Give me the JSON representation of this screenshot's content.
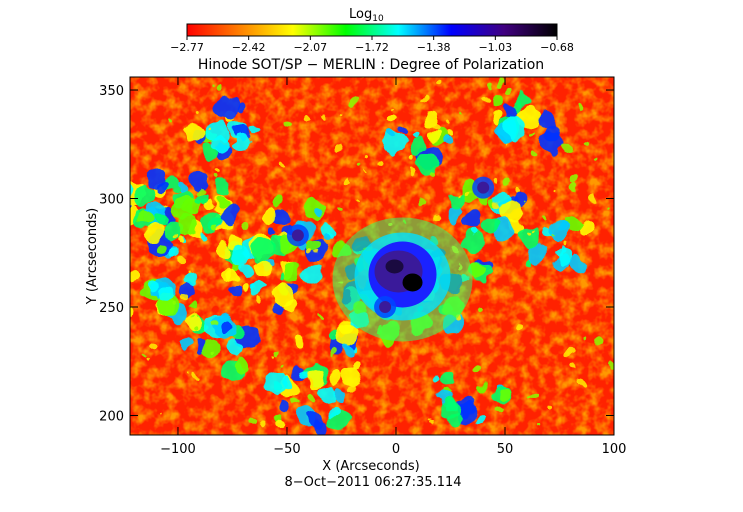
{
  "chart_data": {
    "type": "heatmap",
    "title": "Hinode SOT/SP − MERLIN : Degree of Polarization",
    "colorbar": {
      "label": "Log",
      "label_subscript": "10",
      "ticks": [
        "−2.77",
        "−2.42",
        "−2.07",
        "−1.72",
        "−1.38",
        "−1.03",
        "−0.68"
      ],
      "range": [
        -2.77,
        -0.68
      ],
      "colormap": [
        "#ff0000",
        "#ff8000",
        "#ffff00",
        "#00ff00",
        "#00ffff",
        "#0000ff",
        "#400080",
        "#000000"
      ]
    },
    "xlabel": "X (Arcseconds)",
    "ylabel": "Y (Arcseconds)",
    "xlim": [
      -122,
      100
    ],
    "ylim": [
      191,
      356
    ],
    "xticks": [
      "−100",
      "−50",
      "0",
      "50",
      "100"
    ],
    "xtick_values": [
      -100,
      -50,
      0,
      50,
      100
    ],
    "yticks": [
      "200",
      "250",
      "300",
      "350"
    ],
    "ytick_values": [
      200,
      250,
      300,
      350
    ],
    "timestamp": "8−Oct−2011 06:27:35.114",
    "features": [
      {
        "name": "sunspot umbra",
        "x": 3,
        "y": 265,
        "log10_value": -0.68
      },
      {
        "name": "pore",
        "x": -45,
        "y": 283,
        "log10_value": -0.9
      },
      {
        "name": "pore",
        "x": -5,
        "y": 250,
        "log10_value": -0.9
      },
      {
        "name": "pore",
        "x": 40,
        "y": 305,
        "log10_value": -1.0
      }
    ]
  }
}
